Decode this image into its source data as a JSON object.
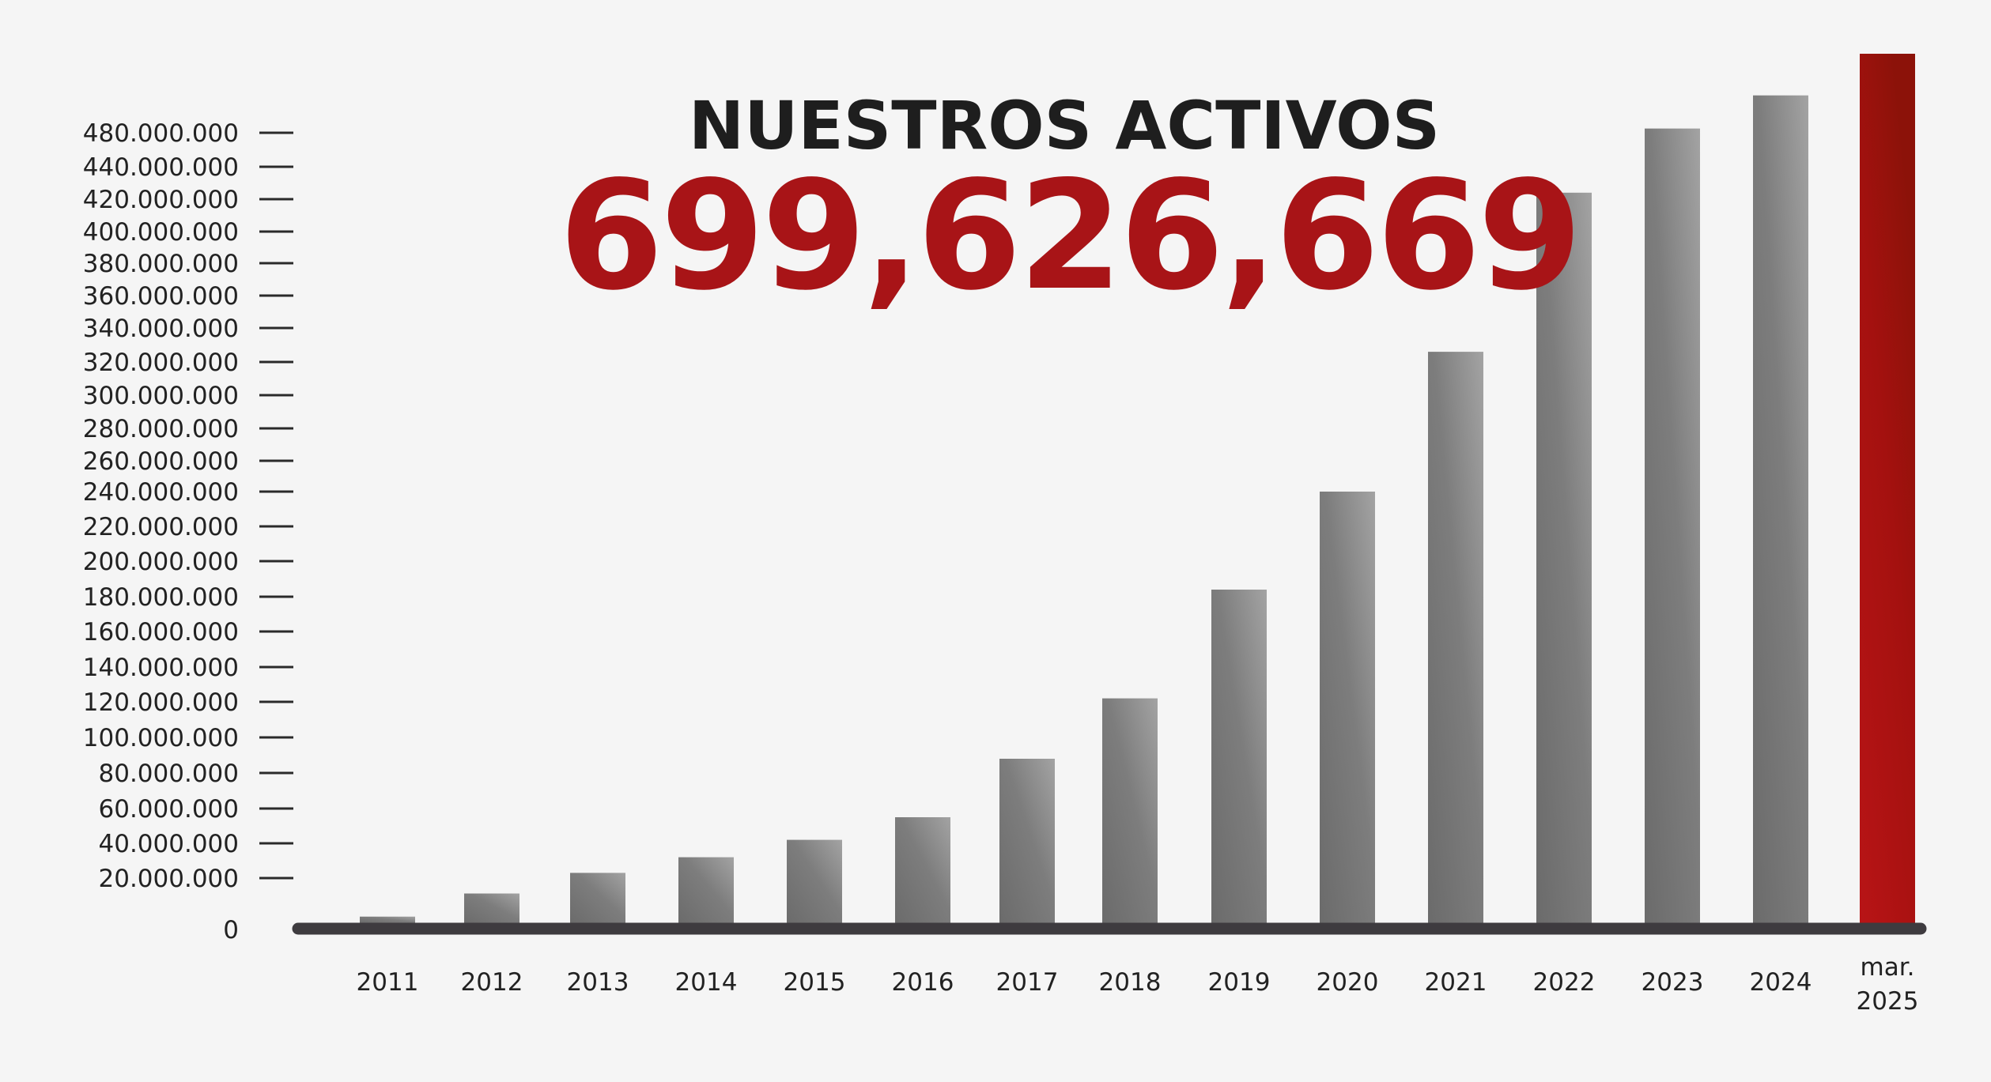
{
  "chart_data": {
    "type": "bar",
    "title": "NUESTROS ACTIVOS",
    "highlight_value": "699,626,669",
    "categories": [
      "2011",
      "2012",
      "2013",
      "2014",
      "2015",
      "2016",
      "2017",
      "2018",
      "2019",
      "2020",
      "2021",
      "2022",
      "2023",
      "2024",
      "mar. 2025"
    ],
    "values": [
      5000000,
      14000000,
      23000000,
      32000000,
      42000000,
      55000000,
      88000000,
      122000000,
      184000000,
      240000000,
      326000000,
      424000000,
      485000000,
      524000000,
      699626669
    ],
    "ytick_labels": [
      "0",
      "20.000.000",
      "40.000.000",
      "60.000.000",
      "80.000.000",
      "100.000.000",
      "120.000.000",
      "140.000.000",
      "160.000.000",
      "180.000.000",
      "200.000.000",
      "220.000.000",
      "240.000.000",
      "260.000.000",
      "280.000.000",
      "300.000.000",
      "320.000.000",
      "340.000.000",
      "360.000.000",
      "380.000.000",
      "400.000.000",
      "420.000.000",
      "440.000.000",
      "480.000.000"
    ],
    "ytick_values": [
      0,
      20000000,
      40000000,
      60000000,
      80000000,
      100000000,
      120000000,
      140000000,
      160000000,
      180000000,
      200000000,
      220000000,
      240000000,
      260000000,
      280000000,
      300000000,
      320000000,
      340000000,
      360000000,
      380000000,
      400000000,
      420000000,
      440000000,
      480000000
    ],
    "xlabel": "",
    "ylabel": "",
    "grid": false,
    "legend": "none",
    "colors": {
      "bar_dark": "#6b6b6b",
      "bar_light": "#a3a3a3",
      "highlight_dark": "#8c1209",
      "highlight_light": "#b81416",
      "axis": "#3e3b3f",
      "title": "#1e1e1e",
      "highlight_text": "#a81417"
    }
  }
}
